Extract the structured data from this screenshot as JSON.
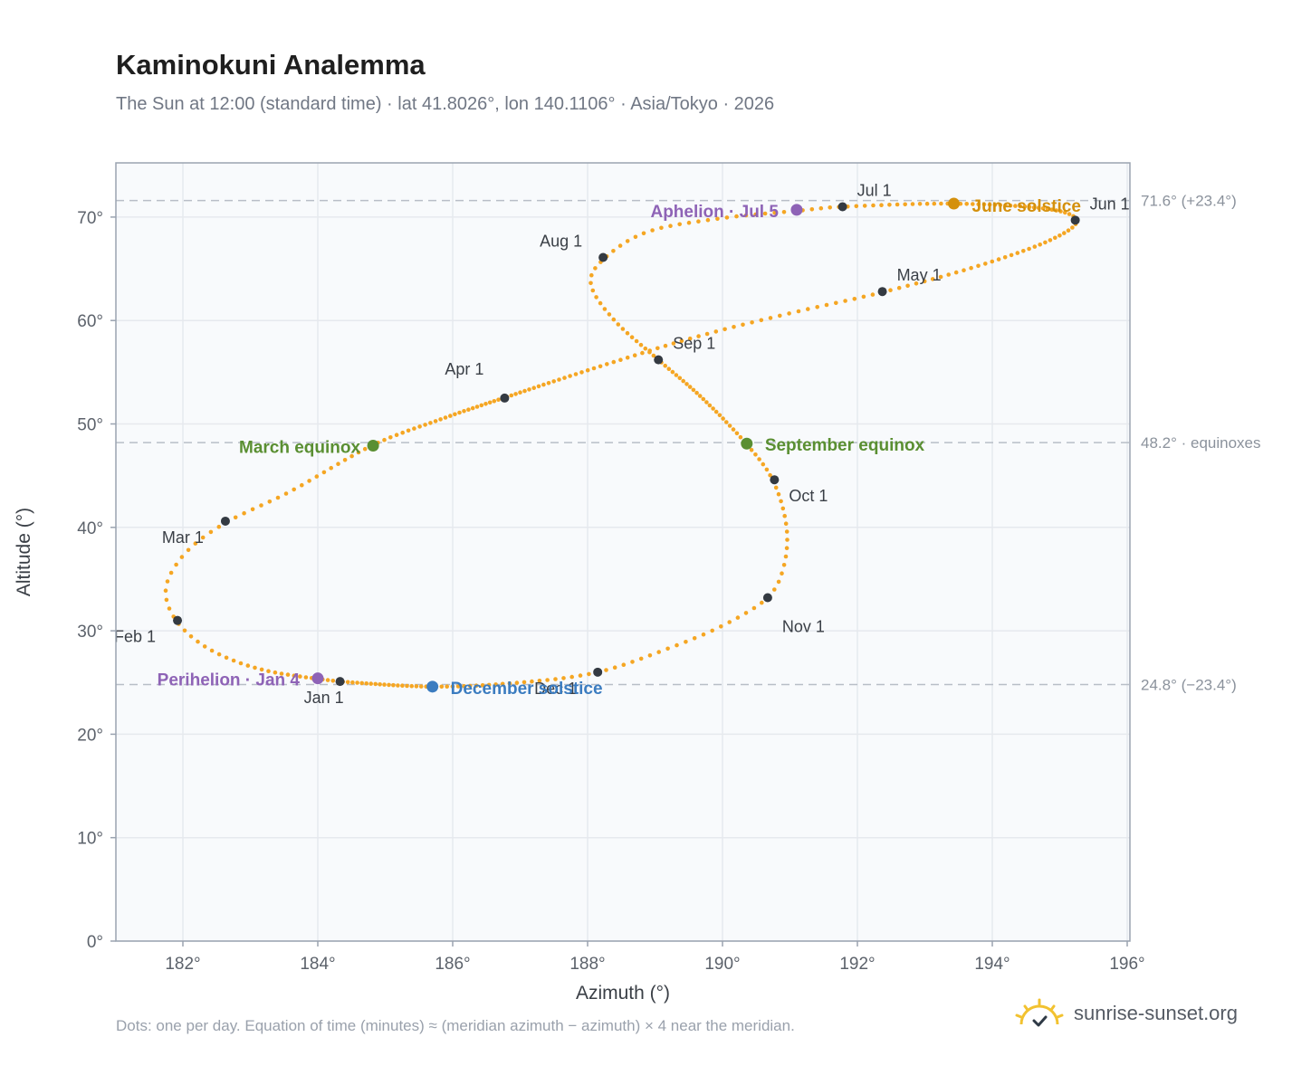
{
  "title": "Kaminokuni Analemma",
  "subtitle": "The Sun at 12:00 (standard time) · lat 41.8026°, lon 140.1106° · Asia/Tokyo · 2026",
  "footnote": "Dots: one per day. Equation of time (minutes) ≈ (meridian azimuth − azimuth) × 4 near the meridian.",
  "brand": {
    "name": "sunrise-sunset.org",
    "icon": "sun-logo-icon"
  },
  "colors": {
    "curve": "#f5a623",
    "month": "#343a42",
    "equinox": "#5a8f32",
    "june_solstice": "#d4900c",
    "december_solstice": "#3b7cc0",
    "apsis": "#8e63b6",
    "grid": "#e6e9ee",
    "plot_bg": "#f8fafc",
    "reference": "#b8bec7"
  },
  "chart_data": {
    "type": "scatter",
    "xlabel": "Azimuth (°)",
    "ylabel": "Altitude (°)",
    "xlim": [
      181.0,
      196.0
    ],
    "ylim": [
      0,
      75
    ],
    "x_ticks": [
      "182°",
      "184°",
      "186°",
      "188°",
      "190°",
      "192°",
      "194°",
      "196°"
    ],
    "x_tick_values": [
      182,
      184,
      186,
      188,
      190,
      192,
      194,
      196
    ],
    "y_ticks": [
      "0°",
      "10°",
      "20°",
      "30°",
      "40°",
      "50°",
      "60°",
      "70°"
    ],
    "y_tick_values": [
      0,
      10,
      20,
      30,
      40,
      50,
      60,
      70
    ],
    "grid": true,
    "reference_lines": [
      {
        "y": 71.6,
        "label": "71.6° (+23.4°)"
      },
      {
        "y": 48.2,
        "label": "48.2° · equinoxes"
      },
      {
        "y": 24.8,
        "label": "24.8° (−23.4°)"
      }
    ],
    "path_knots": [
      [
        184.3,
        25.1
      ],
      [
        183.2,
        26.2
      ],
      [
        182.4,
        28.2
      ],
      [
        181.9,
        31.0
      ],
      [
        181.75,
        34.2
      ],
      [
        182.05,
        37.6
      ],
      [
        182.65,
        40.5
      ],
      [
        183.6,
        43.5
      ],
      [
        184.8,
        47.9
      ],
      [
        185.8,
        50.4
      ],
      [
        186.75,
        52.5
      ],
      [
        188.2,
        55.6
      ],
      [
        189.6,
        58.4
      ],
      [
        191.0,
        60.7
      ],
      [
        192.35,
        62.7
      ],
      [
        193.7,
        65.1
      ],
      [
        194.8,
        67.6
      ],
      [
        195.25,
        69.6
      ],
      [
        194.8,
        70.8
      ],
      [
        193.4,
        71.3
      ],
      [
        191.8,
        71.0
      ],
      [
        191.1,
        70.6
      ],
      [
        190.0,
        69.9
      ],
      [
        188.9,
        68.6
      ],
      [
        188.25,
        66.0
      ],
      [
        188.05,
        63.5
      ],
      [
        188.4,
        60.0
      ],
      [
        189.05,
        56.2
      ],
      [
        189.7,
        52.5
      ],
      [
        190.35,
        48.1
      ],
      [
        190.75,
        44.5
      ],
      [
        190.95,
        40.0
      ],
      [
        190.9,
        36.0
      ],
      [
        190.65,
        33.1
      ],
      [
        190.0,
        30.5
      ],
      [
        189.2,
        28.3
      ],
      [
        188.15,
        26.0
      ],
      [
        187.0,
        25.0
      ],
      [
        185.7,
        24.6
      ],
      [
        184.3,
        25.1
      ]
    ],
    "month_markers": [
      {
        "label": "Jan 1",
        "x": 184.33,
        "y": 25.1
      },
      {
        "label": "Feb 1",
        "x": 181.92,
        "y": 31.0
      },
      {
        "label": "Mar 1",
        "x": 182.63,
        "y": 40.6
      },
      {
        "label": "Apr 1",
        "x": 186.77,
        "y": 52.5
      },
      {
        "label": "May 1",
        "x": 192.37,
        "y": 62.8
      },
      {
        "label": "Jun 1",
        "x": 195.23,
        "y": 69.7
      },
      {
        "label": "Jul 1",
        "x": 191.78,
        "y": 71.0
      },
      {
        "label": "Aug 1",
        "x": 188.23,
        "y": 66.1
      },
      {
        "label": "Sep 1",
        "x": 189.05,
        "y": 56.2
      },
      {
        "label": "Oct 1",
        "x": 190.77,
        "y": 44.6
      },
      {
        "label": "Nov 1",
        "x": 190.67,
        "y": 33.2
      },
      {
        "label": "Dec 1",
        "x": 188.15,
        "y": 26.0
      }
    ],
    "events": [
      {
        "label": "March equinox",
        "x": 184.82,
        "y": 47.9,
        "kind": "equinox"
      },
      {
        "label": "September equinox",
        "x": 190.36,
        "y": 48.1,
        "kind": "equinox"
      },
      {
        "label": "June solstice",
        "x": 193.43,
        "y": 71.3,
        "kind": "june_solstice"
      },
      {
        "label": "December solstice",
        "x": 185.7,
        "y": 24.6,
        "kind": "december_solstice"
      },
      {
        "label": "Aphelion · Jul 5",
        "x": 191.1,
        "y": 70.7,
        "kind": "apsis"
      },
      {
        "label": "Perihelion · Jan 4",
        "x": 184.0,
        "y": 25.4,
        "kind": "apsis"
      }
    ]
  }
}
